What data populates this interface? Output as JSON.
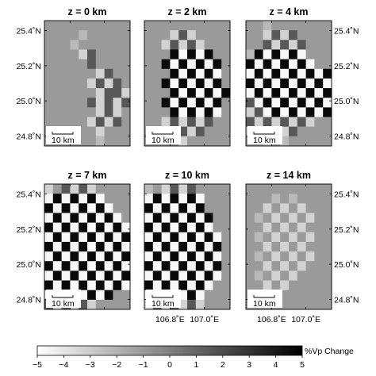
{
  "chart_data": {
    "type": "heatmap",
    "colorbar": {
      "label": "%Vp Change",
      "ticks": [
        "−5",
        "−4",
        "−3",
        "−2",
        "−1",
        "0",
        "1",
        "2",
        "3",
        "4",
        "5"
      ],
      "range": [
        -5,
        5
      ],
      "colormap": "white-to-black"
    },
    "x_tick_labels": [
      "106.8˚E",
      "107.0˚E"
    ],
    "y_tick_labels": [
      "25.4˚N",
      "25.2˚N",
      "25.0˚N",
      "24.8˚N"
    ],
    "scale_bar_label": "10 km",
    "grid": {
      "rows": 13,
      "cols": 10
    },
    "panels": [
      {
        "title": "z = 0 km",
        "cells": [
          "..........",
          "....1.....",
          "...1......",
          "....23....",
          ".....3....",
          "......23..",
          ".....2323.",
          "......2332",
          ".....32323",
          "......232.",
          ".....2323.",
          "......2...",
          "......1..."
        ]
      },
      {
        "title": "z = 2 km",
        "cells": [
          "..........",
          "...232....",
          "..23232...",
          "...54545..",
          "..5454545.",
          "...545454.",
          "..5454545.",
          "...5454545",
          "..5454545.",
          "...545454.",
          "..232323..",
          "...2323...",
          "....2....."
        ]
      },
      {
        "title": "z = 4 km",
        "cells": [
          "..1.......",
          "..2323....",
          "..32323...",
          "1545454...",
          "54545454..",
          "4545454545",
          "5454545454",
          "4545454545",
          "3454545454",
          "2345454545",
          "32323232..",
          "2.2323....",
          "..1.1....."
        ]
      },
      {
        "title": "z = 7 km",
        "cells": [
          "2.3232....",
          "4545454...",
          "54545454..",
          "454545454.",
          "5454545454",
          "4545454545",
          "5454545454",
          "4545454545",
          "5454545454",
          "4545454545",
          "5454545454",
          "45454545..",
          "323232...."
        ]
      },
      {
        "title": "z = 10 km",
        "cells": [
          "1.2323....",
          "4545454...",
          "5454545...",
          "45454545..",
          "54545454..",
          "454545454.",
          "545454545.",
          "454545454.",
          "545454545.",
          "454545454.",
          "54545454..",
          "4545454...",
          "2323232..."
        ]
      },
      {
        "title": "z = 14 km",
        "cells": [
          "..........",
          "...1.1....",
          "..2.2.2...",
          ".1.2.2.2..",
          "..2.2.2...",
          ".1.2.2.2..",
          "..2.2.2...",
          ".1.2.2.2..",
          "..2.2.2...",
          ".1.2.2....",
          "..2.2.....",
          "...1......",
          ".........."
        ]
      }
    ]
  }
}
